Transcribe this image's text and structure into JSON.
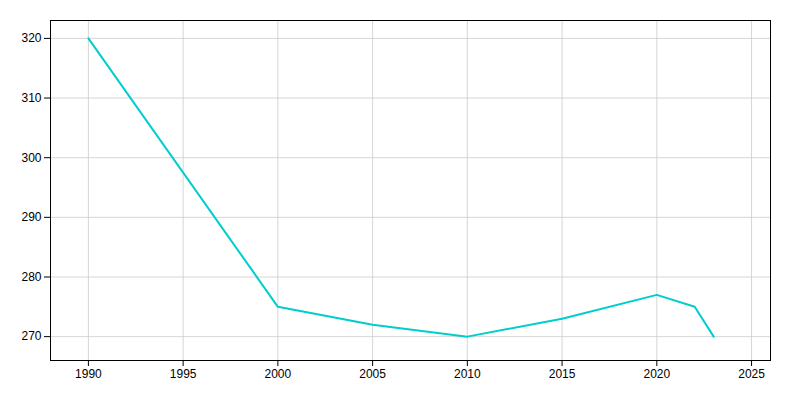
{
  "chart_data": {
    "type": "line",
    "x": [
      1990,
      2000,
      2005,
      2010,
      2015,
      2020,
      2022,
      2023
    ],
    "values": [
      320,
      275,
      272,
      270,
      273,
      277,
      275,
      270
    ],
    "color": "#00CDCD",
    "xlim": [
      1988,
      2026
    ],
    "ylim": [
      266,
      323
    ],
    "xticks": [
      1990,
      1995,
      2000,
      2005,
      2010,
      2015,
      2020,
      2025
    ],
    "yticks": [
      270,
      280,
      290,
      300,
      310,
      320
    ],
    "grid": true
  }
}
